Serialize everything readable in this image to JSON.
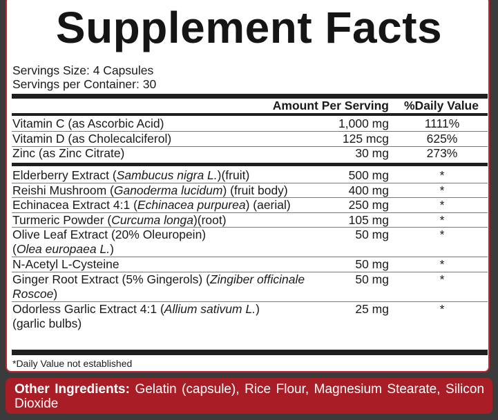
{
  "title": "Supplement Facts",
  "serving_size": "Servings Size: 4 Capsules",
  "servings_per_container": "Servings per Container: 30",
  "header": {
    "amount": "Amount Per Serving",
    "dv": "%Daily Value"
  },
  "vitamins": [
    {
      "name": "Vitamin C (as Ascorbic Acid)",
      "amount": "1,000 mg",
      "dv": "1111%"
    },
    {
      "name": "Vitamin D (as Cholecalciferol)",
      "amount": "125 mcg",
      "dv": "625%"
    },
    {
      "name": "Zinc (as Zinc Citrate)",
      "amount": "30 mg",
      "dv": "273%"
    }
  ],
  "ingredients": [
    {
      "pre": "Elderberry Extract (",
      "latin": "Sambucus nigra L.",
      "post": ")(fruit)",
      "line2": "",
      "amount": "500 mg",
      "dv": "*"
    },
    {
      "pre": "Reishi Mushroom (",
      "latin": "Ganoderma lucidum",
      "post": ") (fruit body)",
      "line2": "",
      "amount": "400 mg",
      "dv": "*"
    },
    {
      "pre": "Echinacea Extract 4:1 (",
      "latin": "Echinacea purpurea",
      "post": ") (aerial)",
      "line2": "",
      "amount": "250 mg",
      "dv": "*"
    },
    {
      "pre": "Turmeric Powder (",
      "latin": "Curcuma longa",
      "post": ")(root)",
      "line2": "",
      "amount": "105 mg",
      "dv": "*"
    },
    {
      "pre": "Olive Leaf Extract (20% Oleuropein)",
      "latin": "",
      "post": "",
      "line2_pre": "(",
      "line2_latin": "Olea europaea L.",
      "line2_post": ")",
      "amount": "50 mg",
      "dv": "*"
    },
    {
      "pre": "N-Acetyl L-Cysteine",
      "latin": "",
      "post": "",
      "amount": "50 mg",
      "dv": "*"
    },
    {
      "pre": "Ginger Root Extract (5% Gingerols) (",
      "latin": "Zingiber officinale",
      "post": "",
      "line2_pre": "",
      "line2_latin": "Roscoe",
      "line2_post": ")",
      "amount": "50 mg",
      "dv": "*"
    },
    {
      "pre": "Odorless Garlic Extract 4:1 (",
      "latin": "Allium sativum L.",
      "post": ")",
      "line2_pre": "(garlic bulbs)",
      "line2_latin": "",
      "line2_post": "",
      "amount": "25 mg",
      "dv": "*"
    }
  ],
  "footnote": "*Daily Value not established",
  "other": {
    "label": "Other Ingredients:",
    "text": " Gelatin (capsule), Rice Flour, Magnesium Stearate, Silicon Dioxide"
  },
  "colors": {
    "background": "#3b3b3b",
    "accent_red": "#a91e26",
    "panel": "#ffffff"
  }
}
